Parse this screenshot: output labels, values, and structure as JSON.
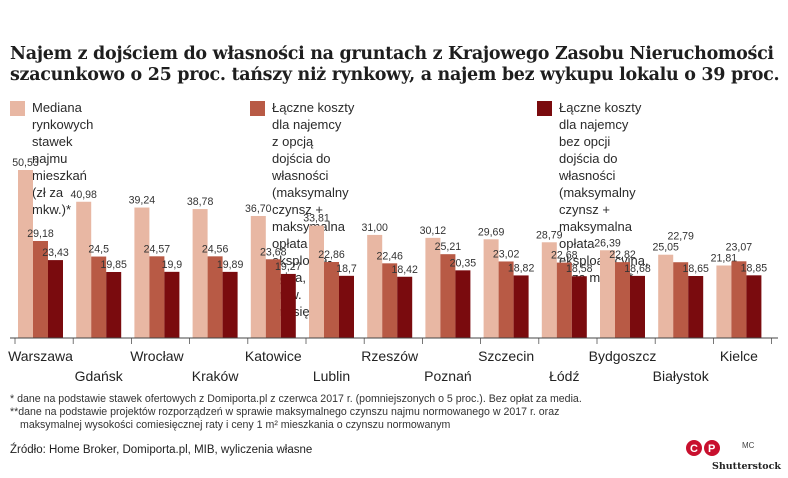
{
  "title_lines": [
    "Najem z dojściem do własności na gruntach z Krajowego Zasobu Nieruchomości",
    "szacunkowo o 25 proc. tańszy niż rynkowy, a najem bez wykupu lokalu o 39 proc."
  ],
  "legend": [
    {
      "label": "Mediana rynkowych\nstawek najmu\nmieszkań (zł za mkw.)*",
      "color": "#e8b7a3"
    },
    {
      "label": "Łączne koszty dla najemcy\nz opcją dojścia do własności\n(maksymalny czynsz +\nmaksymalna opłata eksploata-\ncyjna, zł za mkw. miesięcznie)**",
      "color": "#b85a45"
    },
    {
      "label": "Łączne koszty dla najemcy\nbez opcji dojścia do\nwłasności (maksymalny\nczynsz + maksymalna opłata\neksploatacyjna, zł za mkw.)**",
      "color": "#7a0b0e"
    }
  ],
  "chart_data": {
    "type": "bar",
    "categories": [
      "Warszawa",
      "Gdańsk",
      "Wrocław",
      "Kraków",
      "Katowice",
      "Lublin",
      "Rzeszów",
      "Poznań",
      "Szczecin",
      "Łódź",
      "Bydgoszcz",
      "Białystok",
      "Kielce"
    ],
    "series": [
      {
        "name": "Mediana rynkowych stawek najmu mieszkań (zł za mkw.)*",
        "values": [
          50.53,
          40.98,
          39.24,
          38.78,
          36.7,
          33.81,
          31.0,
          30.12,
          29.69,
          28.79,
          26.39,
          25.05,
          21.81
        ],
        "labels": [
          "50,53",
          "40,98",
          "39,24",
          "38,78",
          "36,70",
          "33,81",
          "31,00",
          "30,12",
          "29,69",
          "28,79",
          "26,39",
          "25,05",
          "21,81"
        ],
        "color": "#e8b7a3"
      },
      {
        "name": "Łączne koszty dla najemcy z opcją dojścia do własności (maksymalny czynsz + maksymalna opłata eksploatacyjna, zł za mkw. miesięcznie)**",
        "values": [
          29.18,
          24.5,
          24.57,
          24.56,
          23.68,
          22.86,
          22.46,
          25.21,
          23.02,
          22.68,
          22.82,
          22.79,
          23.07
        ],
        "labels": [
          "29,18",
          "24,5",
          "24,57",
          "24,56",
          "23,68",
          "22,86",
          "22,46",
          "25,21",
          "23,02",
          "22,68",
          "22,82",
          "22,79",
          "23,07"
        ],
        "color": "#b85a45"
      },
      {
        "name": "Łączne koszty dla najemcy bez opcji dojścia do własności (maksymalny czynsz + maksymalna opłata eksploatacyjna, zł za mkw.)**",
        "values": [
          23.43,
          19.85,
          19.9,
          19.89,
          19.27,
          18.7,
          18.42,
          20.35,
          18.82,
          18.58,
          18.68,
          18.65,
          18.85
        ],
        "labels": [
          "23,43",
          "19,85",
          "19,9",
          "19,89",
          "19,27",
          "18,7",
          "18,42",
          "20,35",
          "18,82",
          "18,58",
          "18,68",
          "18,65",
          "18,85"
        ],
        "color": "#7a0b0e"
      }
    ],
    "ylim": [
      0,
      50.53
    ]
  },
  "footnotes": [
    "* dane na podstawie stawek ofertowych z Domiporta.pl z czerwca 2017 r. (pomniejszonych o 5 proc.). Bez opłat za media.",
    "**dane na podstawie projektów rozporządzeń w sprawie maksymalnego czynszu najmu normowanego w 2017 r. oraz",
    "maksymalnej wysokości comiesięcznej raty i ceny 1 m² mieszkania o czynszu normowanym"
  ],
  "source": "Źródło: Home Broker, Domiporta.pl, MIB, wyliczenia własne",
  "badge_text": "CP",
  "mc_text": "MC",
  "credit": "Shutterstock"
}
